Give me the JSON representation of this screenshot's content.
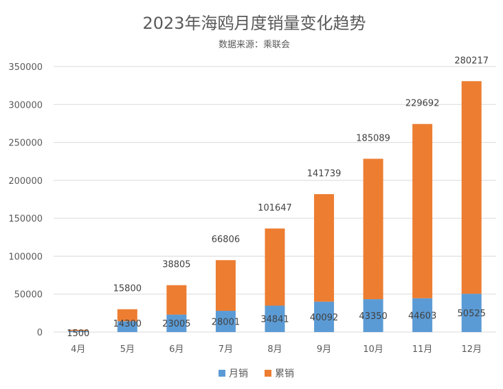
{
  "chart_data": {
    "type": "bar",
    "stacked": true,
    "title": "2023年海鸥月度销量变化趋势",
    "subtitle": "数据来源：乘联会",
    "categories": [
      "4月",
      "5月",
      "6月",
      "7月",
      "8月",
      "9月",
      "10月",
      "11月",
      "12月"
    ],
    "series": [
      {
        "name": "月销",
        "color": "#5B9BD5",
        "values": [
          1500,
          14300,
          23005,
          28001,
          34841,
          40092,
          43350,
          44603,
          50525
        ]
      },
      {
        "name": "累销",
        "color": "#ED7D31",
        "values": [
          1500,
          15800,
          38805,
          66806,
          101647,
          141739,
          185089,
          229692,
          280217
        ]
      }
    ],
    "ylim": [
      0,
      350000
    ],
    "yticks": [
      0,
      50000,
      100000,
      150000,
      200000,
      250000,
      300000,
      350000
    ],
    "grid": true,
    "legend_position": "bottom"
  }
}
